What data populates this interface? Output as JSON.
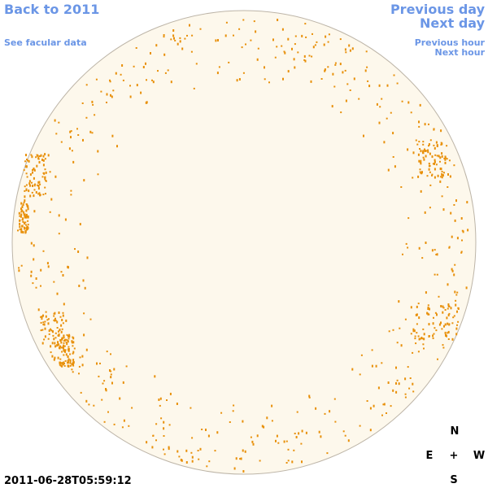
{
  "nav": {
    "back": "Back to 2011",
    "facular": "See facular data",
    "previous_day": "Previous day",
    "next_day": "Next day",
    "previous_hour": "Previous hour",
    "next_hour": "Next hour"
  },
  "timestamp": "2011-06-28T05:59:12",
  "compass": {
    "north": "N",
    "east": "E",
    "center": "+",
    "west": "W",
    "south": "S"
  }
}
